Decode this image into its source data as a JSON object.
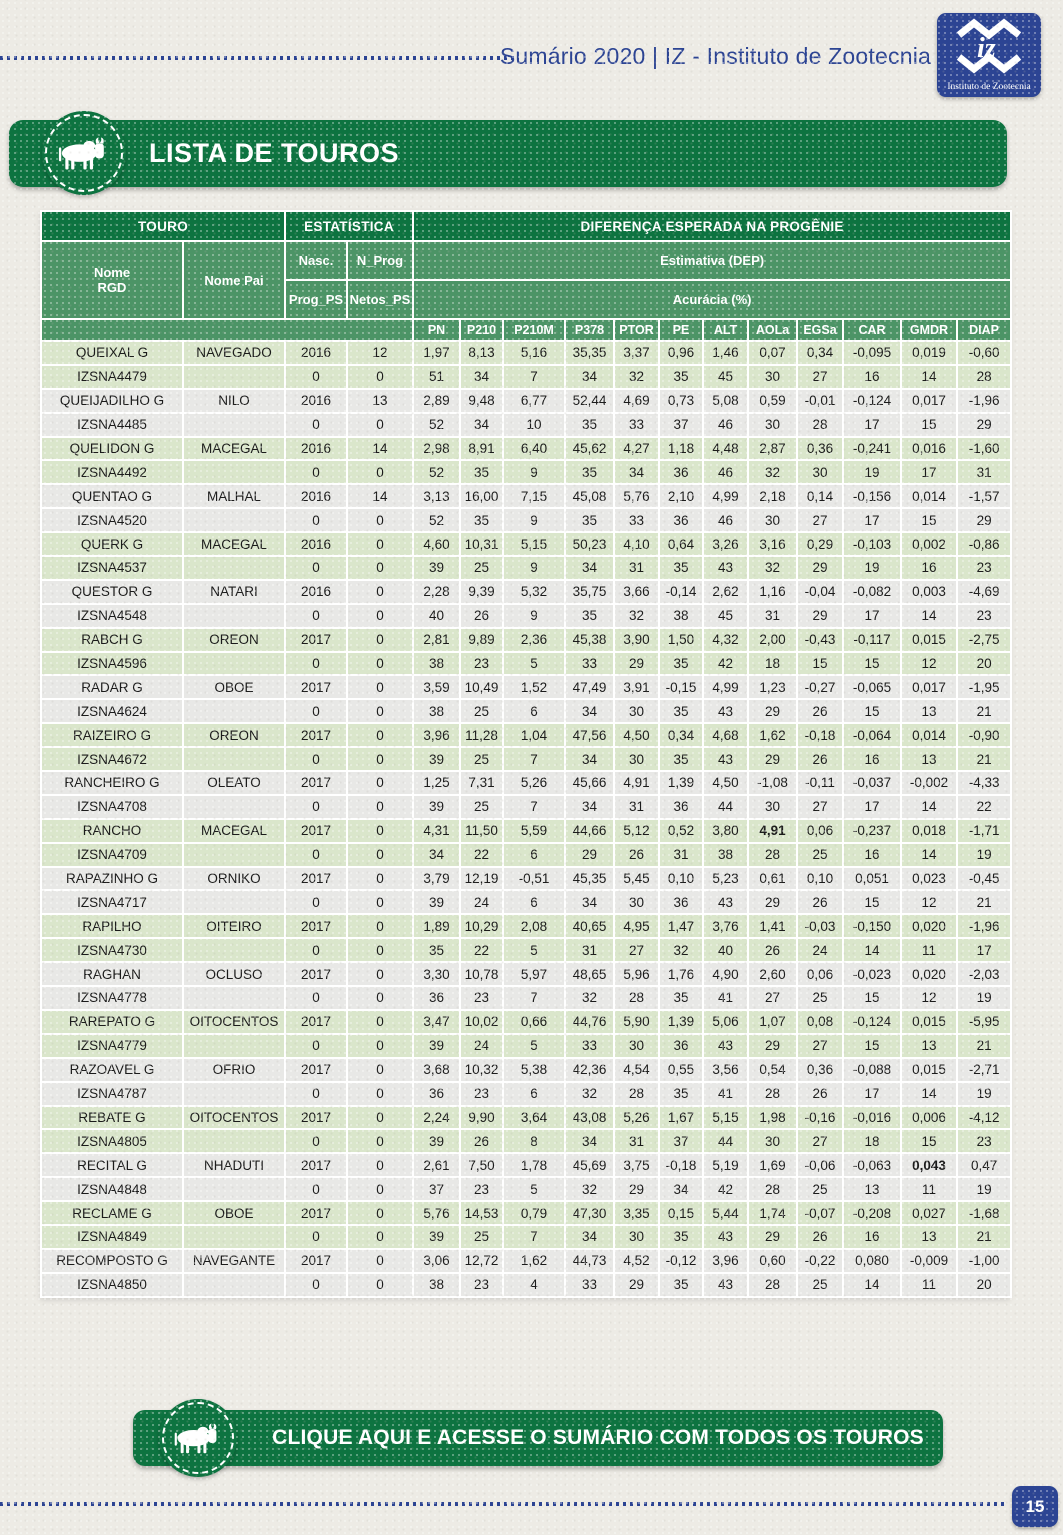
{
  "header": {
    "title": "Sumário 2020 | IZ - Instituto de Zootecnia",
    "logo": {
      "caption": "Instituto de Zootecnia"
    }
  },
  "banner": {
    "title": "LISTA DE TOUROS"
  },
  "table": {
    "group_headers": {
      "touro": "TOURO",
      "estatistica": "ESTATÍSTICA",
      "dep": "DIFERENÇA ESPERADA NA PROGÊNIE"
    },
    "sub_headers": {
      "nome_rgd_line1": "Nome",
      "nome_rgd_line2": "RGD",
      "nome_pai": "Nome Pai",
      "nasc": "Nasc.",
      "n_prog": "N_Prog",
      "prog_ps": "Prog_PS",
      "netos_ps": "Netos_PS",
      "estimativa": "Estimativa (DEP)",
      "acuracia": "Acurácia (%)"
    },
    "metric_columns": [
      "PN",
      "P210",
      "P210M",
      "P378",
      "PTOR",
      "PE",
      "ALT",
      "AOLa",
      "EGSa",
      "CAR",
      "GMDR",
      "DIAP"
    ],
    "bulls": [
      {
        "nome": "QUEIXAL G",
        "rgd": "IZSNA4479",
        "pai": "NAVEGADO",
        "nasc": "2016",
        "n_prog": "12",
        "prog_ps": "0",
        "netos_ps": "0",
        "dep": [
          "1,97",
          "8,13",
          "5,16",
          "35,35",
          "3,37",
          "0,96",
          "1,46",
          "0,07",
          "0,34",
          "-0,095",
          "0,019",
          "-0,60"
        ],
        "acc": [
          "51",
          "34",
          "7",
          "34",
          "32",
          "35",
          "45",
          "30",
          "27",
          "16",
          "14",
          "28"
        ]
      },
      {
        "nome": "QUEIJADILHO G",
        "rgd": "IZSNA4485",
        "pai": "NILO",
        "nasc": "2016",
        "n_prog": "13",
        "prog_ps": "0",
        "netos_ps": "0",
        "dep": [
          "2,89",
          "9,48",
          "6,77",
          "52,44",
          "4,69",
          "0,73",
          "5,08",
          "0,59",
          "-0,01",
          "-0,124",
          "0,017",
          "-1,96"
        ],
        "acc": [
          "52",
          "34",
          "10",
          "35",
          "33",
          "37",
          "46",
          "30",
          "28",
          "17",
          "15",
          "29"
        ]
      },
      {
        "nome": "QUELIDON G",
        "rgd": "IZSNA4492",
        "pai": "MACEGAL",
        "nasc": "2016",
        "n_prog": "14",
        "prog_ps": "0",
        "netos_ps": "0",
        "dep": [
          "2,98",
          "8,91",
          "6,40",
          "45,62",
          "4,27",
          "1,18",
          "4,48",
          "2,87",
          "0,36",
          "-0,241",
          "0,016",
          "-1,60"
        ],
        "acc": [
          "52",
          "35",
          "9",
          "35",
          "34",
          "36",
          "46",
          "32",
          "30",
          "19",
          "17",
          "31"
        ]
      },
      {
        "nome": "QUENTAO G",
        "rgd": "IZSNA4520",
        "pai": "MALHAL",
        "nasc": "2016",
        "n_prog": "14",
        "prog_ps": "0",
        "netos_ps": "0",
        "dep": [
          "3,13",
          "16,00",
          "7,15",
          "45,08",
          "5,76",
          "2,10",
          "4,99",
          "2,18",
          "0,14",
          "-0,156",
          "0,014",
          "-1,57"
        ],
        "acc": [
          "52",
          "35",
          "9",
          "35",
          "33",
          "36",
          "46",
          "30",
          "27",
          "17",
          "15",
          "29"
        ]
      },
      {
        "nome": "QUERK G",
        "rgd": "IZSNA4537",
        "pai": "MACEGAL",
        "nasc": "2016",
        "n_prog": "0",
        "prog_ps": "0",
        "netos_ps": "0",
        "dep": [
          "4,60",
          "10,31",
          "5,15",
          "50,23",
          "4,10",
          "0,64",
          "3,26",
          "3,16",
          "0,29",
          "-0,103",
          "0,002",
          "-0,86"
        ],
        "acc": [
          "39",
          "25",
          "9",
          "34",
          "31",
          "35",
          "43",
          "32",
          "29",
          "19",
          "16",
          "23"
        ]
      },
      {
        "nome": "QUESTOR G",
        "rgd": "IZSNA4548",
        "pai": "NATARI",
        "nasc": "2016",
        "n_prog": "0",
        "prog_ps": "0",
        "netos_ps": "0",
        "dep": [
          "2,28",
          "9,39",
          "5,32",
          "35,75",
          "3,66",
          "-0,14",
          "2,62",
          "1,16",
          "-0,04",
          "-0,082",
          "0,003",
          "-4,69"
        ],
        "acc": [
          "40",
          "26",
          "9",
          "35",
          "32",
          "38",
          "45",
          "31",
          "29",
          "17",
          "14",
          "23"
        ]
      },
      {
        "nome": "RABCH G",
        "rgd": "IZSNA4596",
        "pai": "OREON",
        "nasc": "2017",
        "n_prog": "0",
        "prog_ps": "0",
        "netos_ps": "0",
        "dep": [
          "2,81",
          "9,89",
          "2,36",
          "45,38",
          "3,90",
          "1,50",
          "4,32",
          "2,00",
          "-0,43",
          "-0,117",
          "0,015",
          "-2,75"
        ],
        "acc": [
          "38",
          "23",
          "5",
          "33",
          "29",
          "35",
          "42",
          "18",
          "15",
          "15",
          "12",
          "20"
        ]
      },
      {
        "nome": "RADAR G",
        "rgd": "IZSNA4624",
        "pai": "OBOE",
        "nasc": "2017",
        "n_prog": "0",
        "prog_ps": "0",
        "netos_ps": "0",
        "dep": [
          "3,59",
          "10,49",
          "1,52",
          "47,49",
          "3,91",
          "-0,15",
          "4,99",
          "1,23",
          "-0,27",
          "-0,065",
          "0,017",
          "-1,95"
        ],
        "acc": [
          "38",
          "25",
          "6",
          "34",
          "30",
          "35",
          "43",
          "29",
          "26",
          "15",
          "13",
          "21"
        ]
      },
      {
        "nome": "RAIZEIRO G",
        "rgd": "IZSNA4672",
        "pai": "OREON",
        "nasc": "2017",
        "n_prog": "0",
        "prog_ps": "0",
        "netos_ps": "0",
        "dep": [
          "3,96",
          "11,28",
          "1,04",
          "47,56",
          "4,50",
          "0,34",
          "4,68",
          "1,62",
          "-0,18",
          "-0,064",
          "0,014",
          "-0,90"
        ],
        "acc": [
          "39",
          "25",
          "7",
          "34",
          "30",
          "35",
          "43",
          "29",
          "26",
          "16",
          "13",
          "21"
        ]
      },
      {
        "nome": "RANCHEIRO G",
        "rgd": "IZSNA4708",
        "pai": "OLEATO",
        "nasc": "2017",
        "n_prog": "0",
        "prog_ps": "0",
        "netos_ps": "0",
        "dep": [
          "1,25",
          "7,31",
          "5,26",
          "45,66",
          "4,91",
          "1,39",
          "4,50",
          "-1,08",
          "-0,11",
          "-0,037",
          "-0,002",
          "-4,33"
        ],
        "acc": [
          "39",
          "25",
          "7",
          "34",
          "31",
          "36",
          "44",
          "30",
          "27",
          "17",
          "14",
          "22"
        ]
      },
      {
        "nome": "RANCHO",
        "rgd": "IZSNA4709",
        "pai": "MACEGAL",
        "nasc": "2017",
        "n_prog": "0",
        "prog_ps": "0",
        "netos_ps": "0",
        "dep": [
          "4,31",
          "11,50",
          "5,59",
          "44,66",
          "5,12",
          "0,52",
          "3,80",
          "4,91",
          "0,06",
          "-0,237",
          "0,018",
          "-1,71"
        ],
        "dep_bold": [
          7
        ],
        "acc": [
          "34",
          "22",
          "6",
          "29",
          "26",
          "31",
          "38",
          "28",
          "25",
          "16",
          "14",
          "19"
        ]
      },
      {
        "nome": "RAPAZINHO G",
        "rgd": "IZSNA4717",
        "pai": "ORNIKO",
        "nasc": "2017",
        "n_prog": "0",
        "prog_ps": "0",
        "netos_ps": "0",
        "dep": [
          "3,79",
          "12,19",
          "-0,51",
          "45,35",
          "5,45",
          "0,10",
          "5,23",
          "0,61",
          "0,10",
          "0,051",
          "0,023",
          "-0,45"
        ],
        "acc": [
          "39",
          "24",
          "6",
          "34",
          "30",
          "36",
          "43",
          "29",
          "26",
          "15",
          "12",
          "21"
        ]
      },
      {
        "nome": "RAPILHO",
        "rgd": "IZSNA4730",
        "pai": "OITEIRO",
        "nasc": "2017",
        "n_prog": "0",
        "prog_ps": "0",
        "netos_ps": "0",
        "dep": [
          "1,89",
          "10,29",
          "2,08",
          "40,65",
          "4,95",
          "1,47",
          "3,76",
          "1,41",
          "-0,03",
          "-0,150",
          "0,020",
          "-1,96"
        ],
        "acc": [
          "35",
          "22",
          "5",
          "31",
          "27",
          "32",
          "40",
          "26",
          "24",
          "14",
          "11",
          "17"
        ]
      },
      {
        "nome": "RAGHAN",
        "rgd": "IZSNA4778",
        "pai": "OCLUSO",
        "nasc": "2017",
        "n_prog": "0",
        "prog_ps": "0",
        "netos_ps": "0",
        "dep": [
          "3,30",
          "10,78",
          "5,97",
          "48,65",
          "5,96",
          "1,76",
          "4,90",
          "2,60",
          "0,06",
          "-0,023",
          "0,020",
          "-2,03"
        ],
        "acc": [
          "36",
          "23",
          "7",
          "32",
          "28",
          "35",
          "41",
          "27",
          "25",
          "15",
          "12",
          "19"
        ]
      },
      {
        "nome": "RAREPATO G",
        "rgd": "IZSNA4779",
        "pai": "OITOCENTOS",
        "nasc": "2017",
        "n_prog": "0",
        "prog_ps": "0",
        "netos_ps": "0",
        "dep": [
          "3,47",
          "10,02",
          "0,66",
          "44,76",
          "5,90",
          "1,39",
          "5,06",
          "1,07",
          "0,08",
          "-0,124",
          "0,015",
          "-5,95"
        ],
        "acc": [
          "39",
          "24",
          "5",
          "33",
          "30",
          "36",
          "43",
          "29",
          "27",
          "15",
          "13",
          "21"
        ]
      },
      {
        "nome": "RAZOAVEL G",
        "rgd": "IZSNA4787",
        "pai": "OFRIO",
        "nasc": "2017",
        "n_prog": "0",
        "prog_ps": "0",
        "netos_ps": "0",
        "dep": [
          "3,68",
          "10,32",
          "5,38",
          "42,36",
          "4,54",
          "0,55",
          "3,56",
          "0,54",
          "0,36",
          "-0,088",
          "0,015",
          "-2,71"
        ],
        "acc": [
          "36",
          "23",
          "6",
          "32",
          "28",
          "35",
          "41",
          "28",
          "26",
          "17",
          "14",
          "19"
        ]
      },
      {
        "nome": "REBATE G",
        "rgd": "IZSNA4805",
        "pai": "OITOCENTOS",
        "nasc": "2017",
        "n_prog": "0",
        "prog_ps": "0",
        "netos_ps": "0",
        "dep": [
          "2,24",
          "9,90",
          "3,64",
          "43,08",
          "5,26",
          "1,67",
          "5,15",
          "1,98",
          "-0,16",
          "-0,016",
          "0,006",
          "-4,12"
        ],
        "acc": [
          "39",
          "26",
          "8",
          "34",
          "31",
          "37",
          "44",
          "30",
          "27",
          "18",
          "15",
          "23"
        ]
      },
      {
        "nome": "RECITAL G",
        "rgd": "IZSNA4848",
        "pai": "NHADUTI",
        "nasc": "2017",
        "n_prog": "0",
        "prog_ps": "0",
        "netos_ps": "0",
        "dep": [
          "2,61",
          "7,50",
          "1,78",
          "45,69",
          "3,75",
          "-0,18",
          "5,19",
          "1,69",
          "-0,06",
          "-0,063",
          "0,043",
          "0,47"
        ],
        "dep_bold": [
          10
        ],
        "acc": [
          "37",
          "23",
          "5",
          "32",
          "29",
          "34",
          "42",
          "28",
          "25",
          "13",
          "11",
          "19"
        ]
      },
      {
        "nome": "RECLAME G",
        "rgd": "IZSNA4849",
        "pai": "OBOE",
        "nasc": "2017",
        "n_prog": "0",
        "prog_ps": "0",
        "netos_ps": "0",
        "dep": [
          "5,76",
          "14,53",
          "0,79",
          "47,30",
          "3,35",
          "0,15",
          "5,44",
          "1,74",
          "-0,07",
          "-0,208",
          "0,027",
          "-1,68"
        ],
        "acc": [
          "39",
          "25",
          "7",
          "34",
          "30",
          "35",
          "43",
          "29",
          "26",
          "16",
          "13",
          "21"
        ]
      },
      {
        "nome": "RECOMPOSTO G",
        "rgd": "IZSNA4850",
        "pai": "NAVEGANTE",
        "nasc": "2017",
        "n_prog": "0",
        "prog_ps": "0",
        "netos_ps": "0",
        "dep": [
          "3,06",
          "12,72",
          "1,62",
          "44,73",
          "4,52",
          "-0,12",
          "3,96",
          "0,60",
          "-0,22",
          "0,080",
          "-0,009",
          "-1,00"
        ],
        "acc": [
          "38",
          "23",
          "4",
          "33",
          "29",
          "35",
          "43",
          "28",
          "25",
          "14",
          "11",
          "20"
        ]
      }
    ]
  },
  "footer": {
    "cta": "CLIQUE AQUI E ACESSE O SUMÁRIO COM TODOS OS TOUROS",
    "page_number": "15"
  },
  "colors": {
    "dark_green": "#0D7340",
    "mid_green": "#4C9466",
    "row_green": "#DAE6CB",
    "row_gray": "#E8E8E6",
    "blue": "#2C4493"
  }
}
